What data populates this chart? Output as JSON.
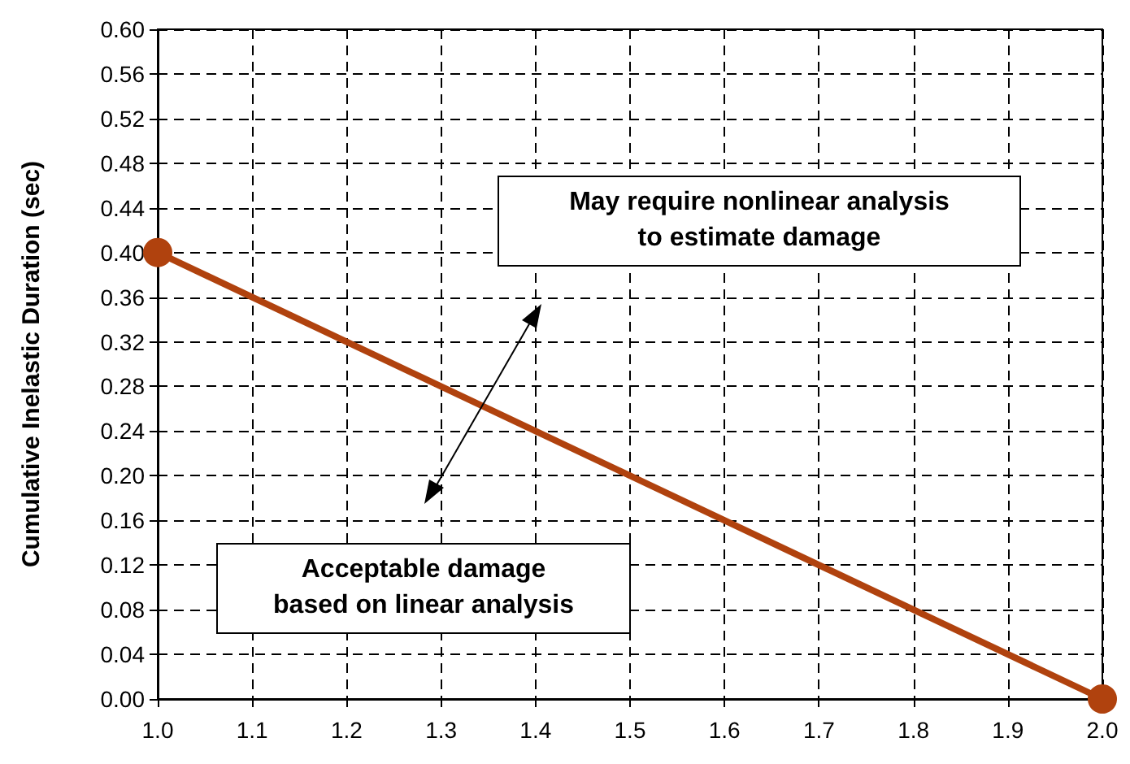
{
  "chart_data": {
    "type": "line",
    "ylabel": "Cumulative Inelastic Duration (sec)",
    "x": [
      1.0,
      2.0
    ],
    "series": [
      {
        "color": "#b0420e",
        "values": [
          0.4,
          0.0
        ]
      }
    ],
    "xlim": [
      1.0,
      2.0
    ],
    "xticks": [
      {
        "value": 1.0,
        "label": "1.0"
      },
      {
        "value": 1.1,
        "label": "1.1"
      },
      {
        "value": 1.2,
        "label": "1.2"
      },
      {
        "value": 1.3,
        "label": "1.3"
      },
      {
        "value": 1.4,
        "label": "1.4"
      },
      {
        "value": 1.5,
        "label": "1.5"
      },
      {
        "value": 1.6,
        "label": "1.6"
      },
      {
        "value": 1.7,
        "label": "1.7"
      },
      {
        "value": 1.8,
        "label": "1.8"
      },
      {
        "value": 1.9,
        "label": "1.9"
      },
      {
        "value": 2.0,
        "label": "2.0"
      }
    ],
    "ylim": [
      0,
      0.6
    ],
    "yticks": [
      {
        "value": 0,
        "label": "0.00"
      },
      {
        "value": 0.04,
        "label": "0.04"
      },
      {
        "value": 0.08,
        "label": "0.08"
      },
      {
        "value": 0.12,
        "label": "0.12"
      },
      {
        "value": 0.16,
        "label": "0.16"
      },
      {
        "value": 0.2,
        "label": "0.20"
      },
      {
        "value": 0.24,
        "label": "0.24"
      },
      {
        "value": 0.28,
        "label": "0.28"
      },
      {
        "value": 0.32,
        "label": "0.32"
      },
      {
        "value": 0.36,
        "label": "0.36"
      },
      {
        "value": 0.4,
        "label": "0.40"
      },
      {
        "value": 0.44,
        "label": "0.44"
      },
      {
        "value": 0.48,
        "label": "0.48"
      },
      {
        "value": 0.52,
        "label": "0.52"
      },
      {
        "value": 0.56,
        "label": "0.56"
      },
      {
        "value": 0.6,
        "label": "0.60"
      }
    ],
    "grid": true,
    "marker": "circle",
    "line_style": "solid",
    "annotations": [
      "May require nonlinear analysis\nto estimate damage",
      "Acceptable damage\nbased on linear analysis"
    ]
  }
}
